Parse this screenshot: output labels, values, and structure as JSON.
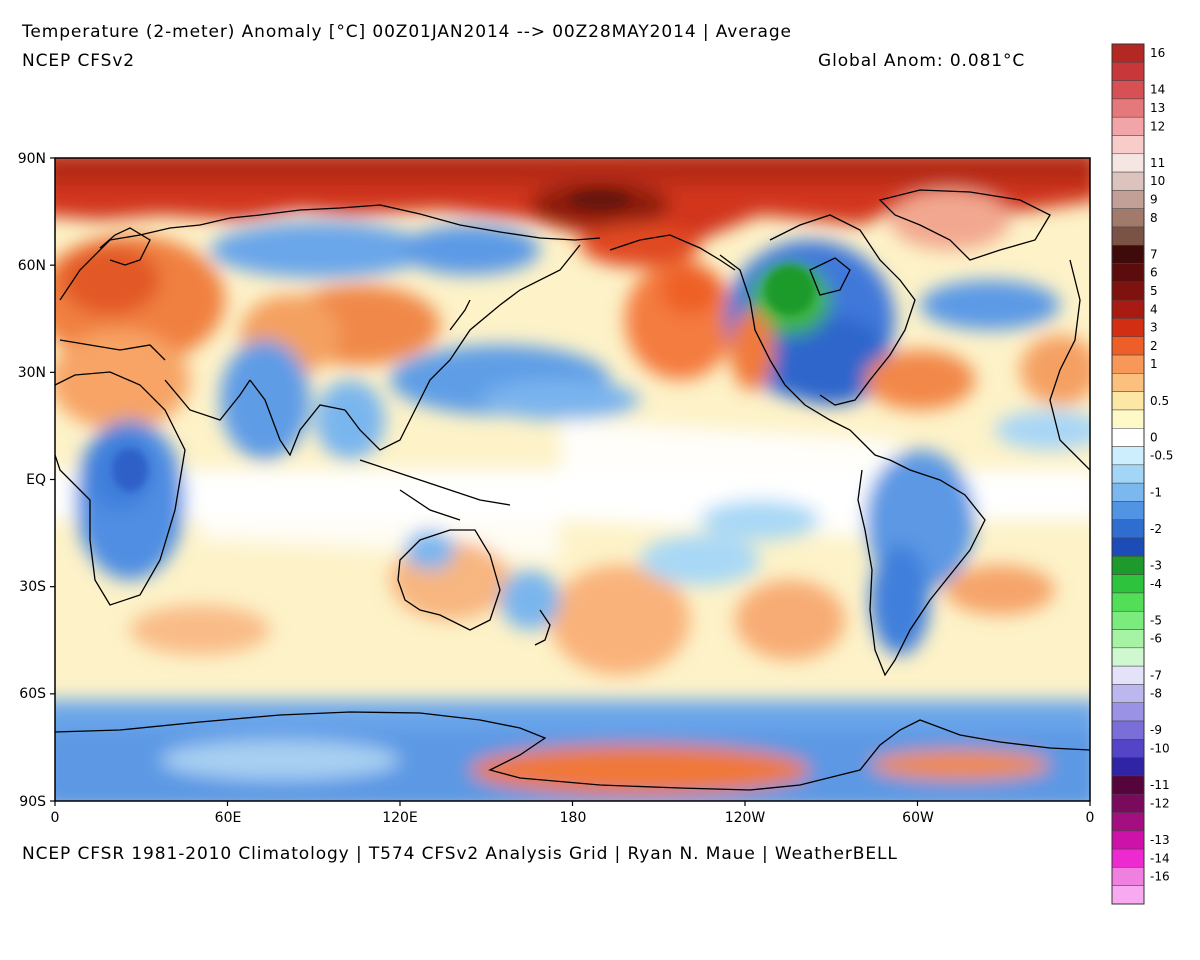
{
  "header": {
    "title": "Temperature (2-meter) Anomaly  [°C] 00Z01JAN2014 --> 00Z28MAY2014 | Average",
    "subtitle": "NCEP CFSv2",
    "global_anom": "Global Anom: 0.081°C"
  },
  "footer": "NCEP CFSR 1981-2010 Climatology | T574 CFSv2 Analysis Grid | Ryan N. Maue | WeatherBELL",
  "colors": {
    "warm": "#e0502a",
    "cool": "#4a8ee0",
    "neutral": "#ffffff",
    "green": "#30b030"
  },
  "chart_data": {
    "type": "heatmap",
    "y_ticks": [
      "90N",
      "60N",
      "30N",
      "EQ",
      "30S",
      "60S",
      "90S"
    ],
    "x_ticks": [
      "0",
      "60E",
      "120E",
      "180",
      "120W",
      "60W",
      "0"
    ],
    "colorbar": [
      {
        "label": "16",
        "color": "#b42823"
      },
      {
        "label": "",
        "color": "#c8383a"
      },
      {
        "label": "14",
        "color": "#d65054"
      },
      {
        "label": "13",
        "color": "#e4787a"
      },
      {
        "label": "12",
        "color": "#f2a5a8"
      },
      {
        "label": "",
        "color": "#f9cccc"
      },
      {
        "label": "11",
        "color": "#f6e6e3"
      },
      {
        "label": "10",
        "color": "#dcc3bd"
      },
      {
        "label": "9",
        "color": "#c2a097"
      },
      {
        "label": "8",
        "color": "#a27a6c"
      },
      {
        "label": "",
        "color": "#7a5246"
      },
      {
        "label": "7",
        "color": "#3e0a0a"
      },
      {
        "label": "6",
        "color": "#5c0c0c"
      },
      {
        "label": "5",
        "color": "#7e120e"
      },
      {
        "label": "4",
        "color": "#a81a12"
      },
      {
        "label": "3",
        "color": "#d22e14"
      },
      {
        "label": "2",
        "color": "#ee5e28"
      },
      {
        "label": "1",
        "color": "#f79858"
      },
      {
        "label": "",
        "color": "#fbbf7e"
      },
      {
        "label": "0.5",
        "color": "#fde7a4"
      },
      {
        "label": "",
        "color": "#fefac8"
      },
      {
        "label": "0",
        "color": "#ffffff"
      },
      {
        "label": "-0.5",
        "color": "#cdeefc"
      },
      {
        "label": "",
        "color": "#a3d6f6"
      },
      {
        "label": "-1",
        "color": "#7ab8ef"
      },
      {
        "label": "",
        "color": "#5194e4"
      },
      {
        "label": "-2",
        "color": "#2f6dd1"
      },
      {
        "label": "",
        "color": "#1d4cb8"
      },
      {
        "label": "-3",
        "color": "#1d9a2b"
      },
      {
        "label": "-4",
        "color": "#2ec33c"
      },
      {
        "label": "",
        "color": "#52de57"
      },
      {
        "label": "-5",
        "color": "#7beb7e"
      },
      {
        "label": "-6",
        "color": "#a6f3a6"
      },
      {
        "label": "",
        "color": "#d0f8d0"
      },
      {
        "label": "-7",
        "color": "#e4e2f8"
      },
      {
        "label": "-8",
        "color": "#bcb7ef"
      },
      {
        "label": "",
        "color": "#9a92e4"
      },
      {
        "label": "-9",
        "color": "#7a6fd8"
      },
      {
        "label": "-10",
        "color": "#5444c6"
      },
      {
        "label": "",
        "color": "#2f23a6"
      },
      {
        "label": "-11",
        "color": "#55053c"
      },
      {
        "label": "-12",
        "color": "#7a0a5c"
      },
      {
        "label": "",
        "color": "#a30e80"
      },
      {
        "label": "-13",
        "color": "#cc12a8"
      },
      {
        "label": "-14",
        "color": "#ec2ad0"
      },
      {
        "label": "-16",
        "color": "#f080e0"
      },
      {
        "label": "",
        "color": "#f7aaf0"
      }
    ]
  }
}
